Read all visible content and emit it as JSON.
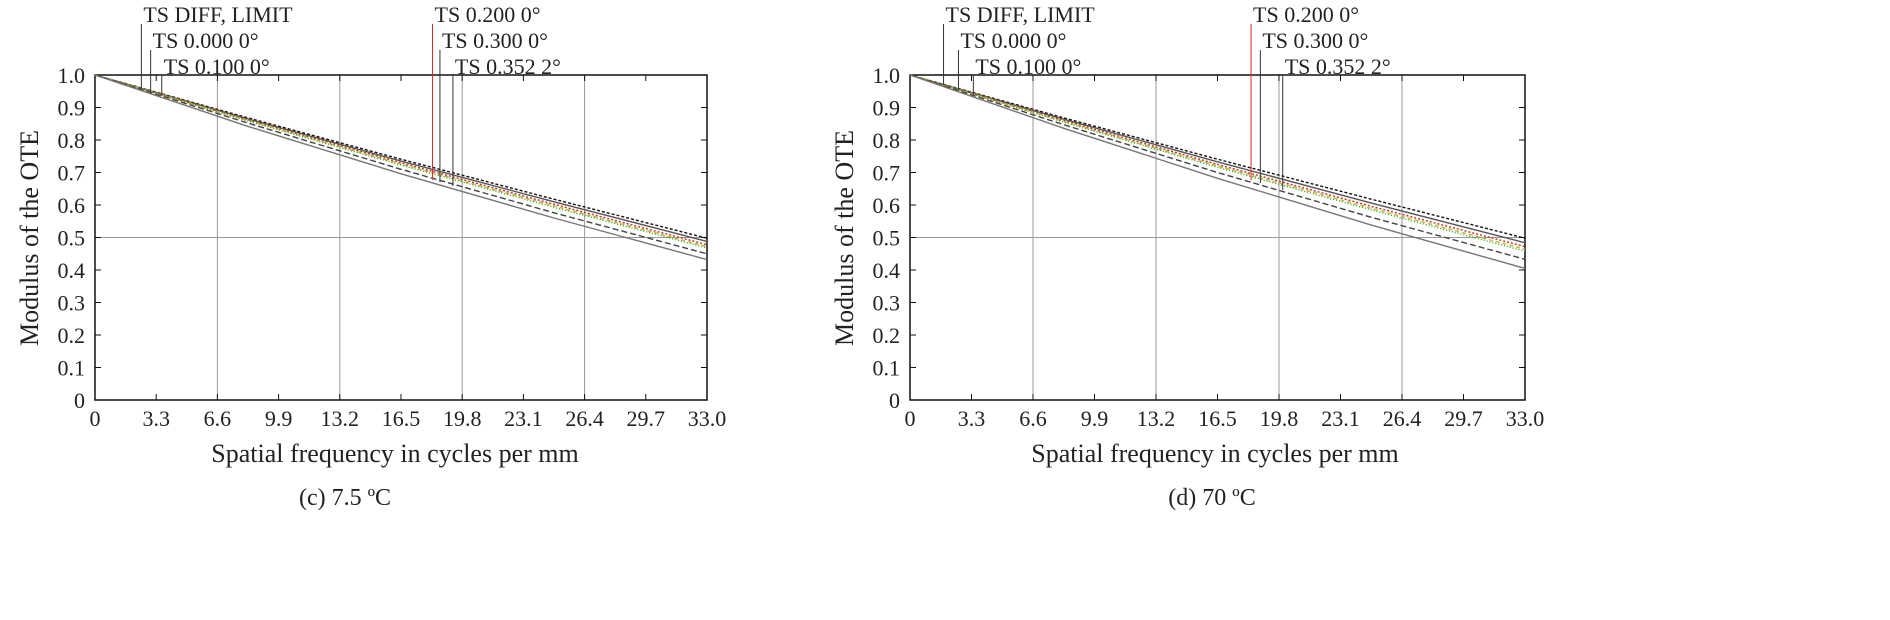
{
  "chart_data": [
    {
      "type": "line",
      "caption": "(c) 7.5 ºC",
      "xlabel": "Spatial frequency in cycles per mm",
      "ylabel": "Modulus of the OTE",
      "xlim": [
        0,
        33.0
      ],
      "ylim": [
        0,
        1.0
      ],
      "xticks": [
        "0",
        "3.3",
        "6.6",
        "9.9",
        "13.2",
        "16.5",
        "19.8",
        "23.1",
        "26.4",
        "29.7",
        "33.0"
      ],
      "yticks": [
        "0",
        "0.1",
        "0.2",
        "0.3",
        "0.4",
        "0.5",
        "0.6",
        "0.7",
        "0.8",
        "0.9",
        "1.0"
      ],
      "grid": true,
      "legend": [
        {
          "label": "TS DIFF, LIMIT",
          "at_x": 2.5
        },
        {
          "label": "TS 0.000 0°",
          "at_x": 3.0
        },
        {
          "label": "TS 0.100 0°",
          "at_x": 3.6
        },
        {
          "label": "TS 0.200 0°",
          "at_x": 18.2
        },
        {
          "label": "TS 0.300 0°",
          "at_x": 18.6
        },
        {
          "label": "TS 0.352 2°",
          "at_x": 19.3
        }
      ],
      "series": [
        {
          "color": "#111111",
          "dash": "3,2",
          "values": [
            [
              0,
              1.0
            ],
            [
              8.25,
              0.868
            ],
            [
              16.5,
              0.741
            ],
            [
              24.75,
              0.618
            ],
            [
              33,
              0.498
            ]
          ]
        },
        {
          "color": "#555555",
          "dash": "",
          "values": [
            [
              0,
              1.0
            ],
            [
              8.25,
              0.865
            ],
            [
              16.5,
              0.735
            ],
            [
              24.75,
              0.61
            ],
            [
              33,
              0.488
            ]
          ]
        },
        {
          "color": "#d62728",
          "dash": "2,2",
          "values": [
            [
              0,
              1.0
            ],
            [
              8.25,
              0.862
            ],
            [
              16.5,
              0.73
            ],
            [
              24.75,
              0.602
            ],
            [
              33,
              0.478
            ]
          ]
        },
        {
          "color": "#bcbd22",
          "dash": "4,3",
          "values": [
            [
              0,
              1.0
            ],
            [
              8.25,
              0.86
            ],
            [
              16.5,
              0.726
            ],
            [
              24.75,
              0.597
            ],
            [
              33,
              0.472
            ]
          ]
        },
        {
          "color": "#2ca02c",
          "dash": "1,2",
          "values": [
            [
              0,
              1.0
            ],
            [
              8.25,
              0.858
            ],
            [
              16.5,
              0.723
            ],
            [
              24.75,
              0.593
            ],
            [
              33,
              0.468
            ]
          ]
        },
        {
          "color": "#444444",
          "dash": "6,3",
          "values": [
            [
              0,
              1.0
            ],
            [
              8.25,
              0.852
            ],
            [
              16.5,
              0.71
            ],
            [
              24.75,
              0.576
            ],
            [
              33,
              0.45
            ]
          ]
        },
        {
          "color": "#777777",
          "dash": "",
          "values": [
            [
              0,
              1.0
            ],
            [
              8.25,
              0.842
            ],
            [
              16.5,
              0.696
            ],
            [
              24.75,
              0.56
            ],
            [
              33,
              0.432
            ]
          ]
        }
      ]
    },
    {
      "type": "line",
      "caption": "(d) 70 ºC",
      "xlabel": "Spatial frequency in cycles per mm",
      "ylabel": "Modulus of the OTE",
      "xlim": [
        0,
        33.0
      ],
      "ylim": [
        0,
        1.0
      ],
      "xticks": [
        "0",
        "3.3",
        "6.6",
        "9.9",
        "13.2",
        "16.5",
        "19.8",
        "23.1",
        "26.4",
        "29.7",
        "33.0"
      ],
      "yticks": [
        "0",
        "0.1",
        "0.2",
        "0.3",
        "0.4",
        "0.5",
        "0.6",
        "0.7",
        "0.8",
        "0.9",
        "1.0"
      ],
      "grid": true,
      "legend": [
        {
          "label": "TS DIFF, LIMIT",
          "at_x": 1.8
        },
        {
          "label": "TS 0.000 0°",
          "at_x": 2.6
        },
        {
          "label": "TS 0.100 0°",
          "at_x": 3.4
        },
        {
          "label": "TS 0.200 0°",
          "at_x": 18.3
        },
        {
          "label": "TS 0.300 0°",
          "at_x": 18.8
        },
        {
          "label": "TS 0.352 2°",
          "at_x": 20.0
        }
      ],
      "series": [
        {
          "color": "#111111",
          "dash": "3,2",
          "values": [
            [
              0,
              1.0
            ],
            [
              8.25,
              0.868
            ],
            [
              16.5,
              0.741
            ],
            [
              24.75,
              0.618
            ],
            [
              33,
              0.498
            ]
          ]
        },
        {
          "color": "#555555",
          "dash": "",
          "values": [
            [
              0,
              1.0
            ],
            [
              8.25,
              0.864
            ],
            [
              16.5,
              0.733
            ],
            [
              24.75,
              0.606
            ],
            [
              33,
              0.484
            ]
          ]
        },
        {
          "color": "#d62728",
          "dash": "2,2",
          "values": [
            [
              0,
              1.0
            ],
            [
              8.25,
              0.86
            ],
            [
              16.5,
              0.725
            ],
            [
              24.75,
              0.596
            ],
            [
              33,
              0.472
            ]
          ]
        },
        {
          "color": "#bcbd22",
          "dash": "4,3",
          "values": [
            [
              0,
              1.0
            ],
            [
              8.25,
              0.857
            ],
            [
              16.5,
              0.72
            ],
            [
              24.75,
              0.59
            ],
            [
              33,
              0.464
            ]
          ]
        },
        {
          "color": "#2ca02c",
          "dash": "1,2",
          "values": [
            [
              0,
              1.0
            ],
            [
              8.25,
              0.855
            ],
            [
              16.5,
              0.716
            ],
            [
              24.75,
              0.585
            ],
            [
              33,
              0.458
            ]
          ]
        },
        {
          "color": "#444444",
          "dash": "6,3",
          "values": [
            [
              0,
              1.0
            ],
            [
              8.25,
              0.847
            ],
            [
              16.5,
              0.7
            ],
            [
              24.75,
              0.562
            ],
            [
              33,
              0.433
            ]
          ]
        },
        {
          "color": "#777777",
          "dash": "",
          "values": [
            [
              0,
              1.0
            ],
            [
              8.25,
              0.836
            ],
            [
              16.5,
              0.682
            ],
            [
              24.75,
              0.538
            ],
            [
              33,
              0.405
            ]
          ]
        }
      ]
    }
  ]
}
